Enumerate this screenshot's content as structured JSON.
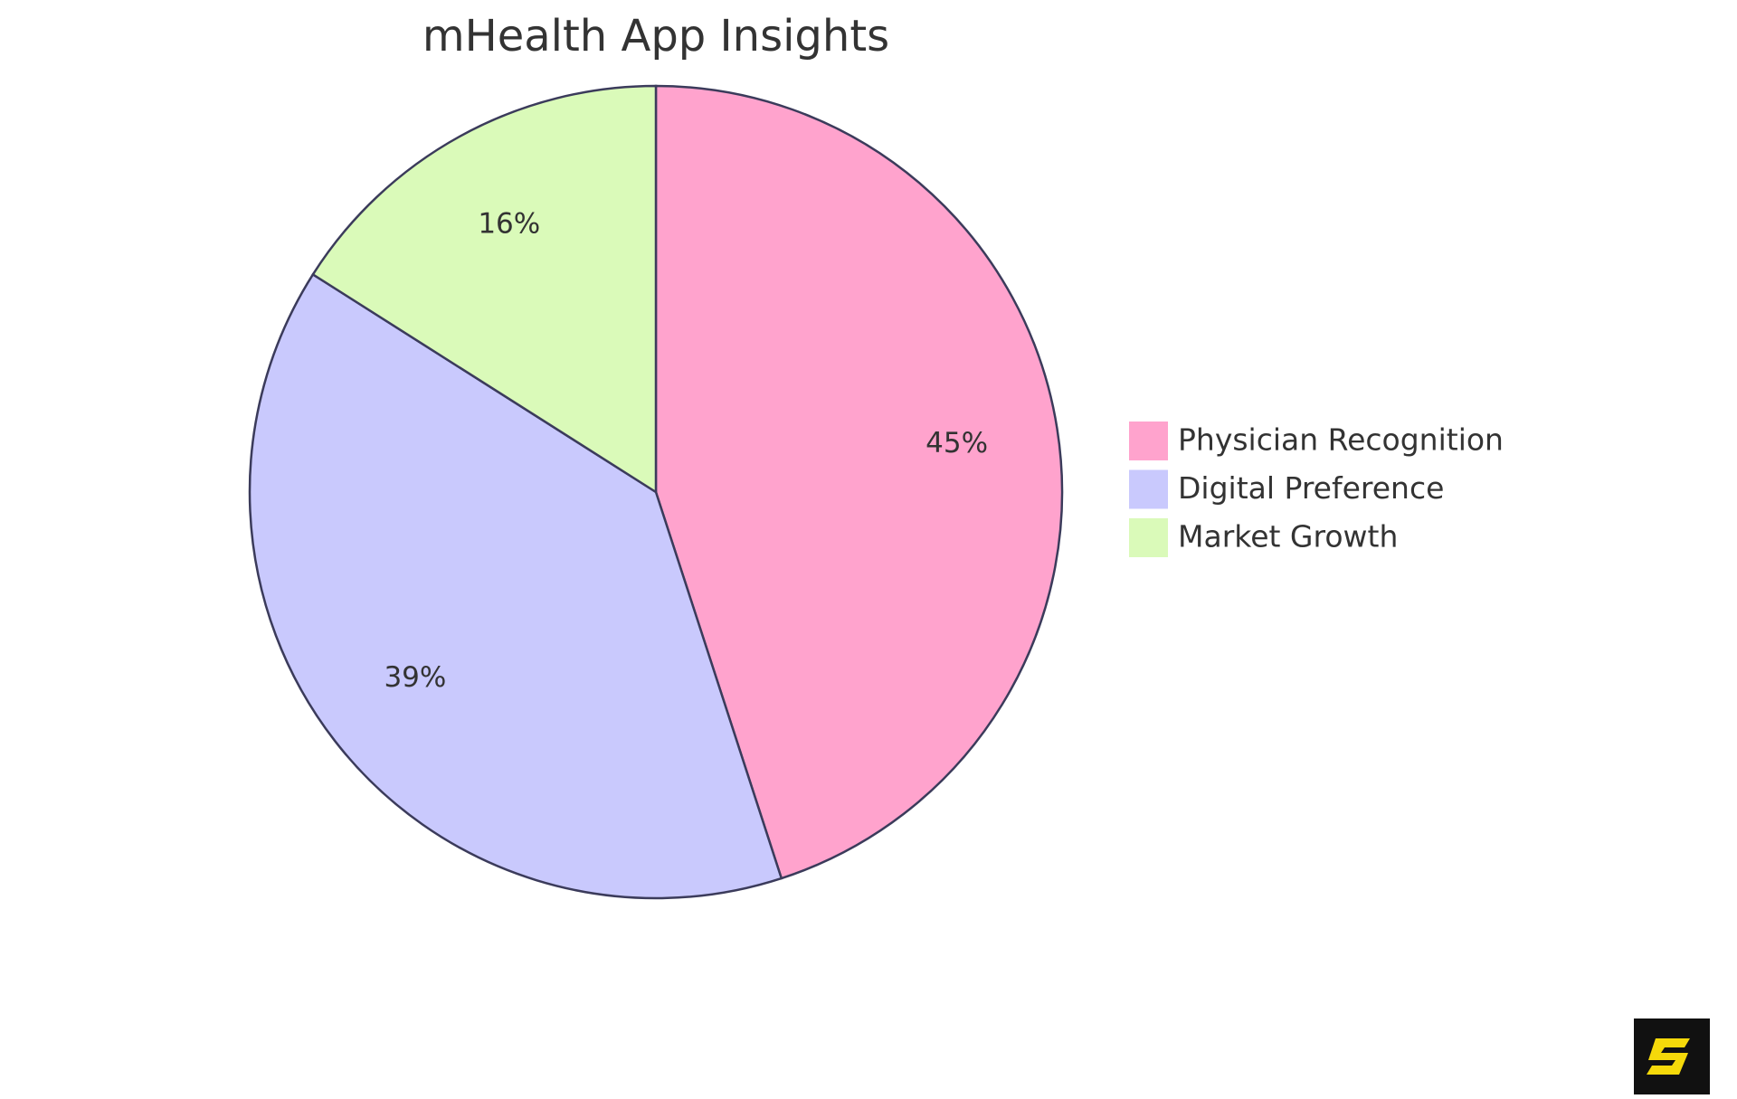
{
  "chart_data": {
    "type": "pie",
    "title": "mHealth App Insights",
    "categories": [
      "Physician Recognition",
      "Digital Preference",
      "Market Growth"
    ],
    "values": [
      45,
      39,
      16
    ],
    "value_labels": [
      "45%",
      "39%",
      "16%"
    ],
    "colors": [
      "#ffa3cd",
      "#c9c9fd",
      "#dafab9"
    ],
    "legend": "right"
  }
}
